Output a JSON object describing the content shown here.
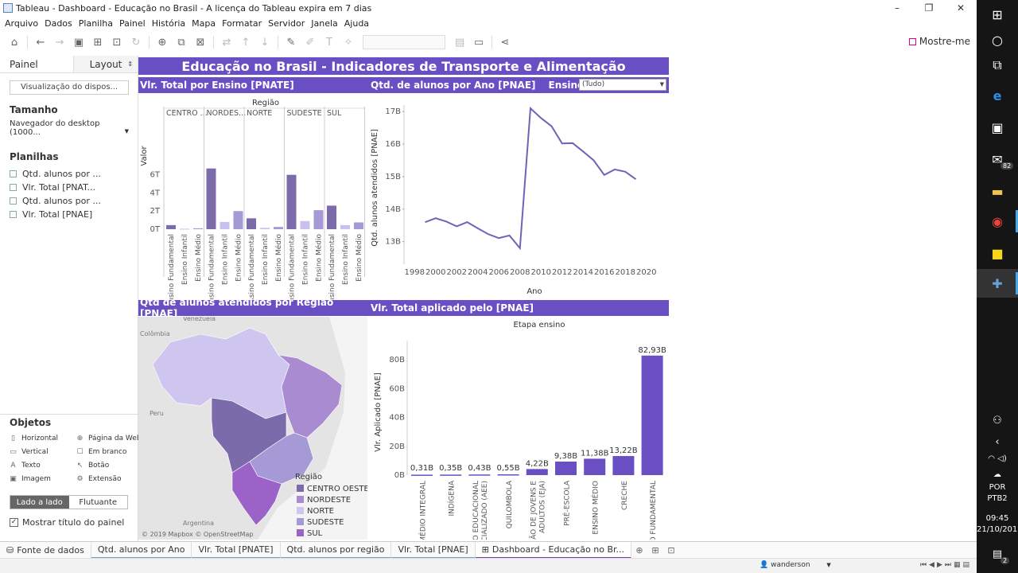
{
  "window": {
    "title": "Tableau - Dashboard - Educação no Brasil - A licença do Tableau expira em  7 dias",
    "controls": [
      "–",
      "❐",
      "✕"
    ]
  },
  "menu": [
    "Arquivo",
    "Dados",
    "Planilha",
    "Painel",
    "História",
    "Mapa",
    "Formatar",
    "Servidor",
    "Janela",
    "Ajuda"
  ],
  "toolbar": {
    "show_me": "Mostre-me"
  },
  "sidebar": {
    "tabs": [
      "Painel",
      "Layout"
    ],
    "device_preview": "Visualização do dispos...",
    "size_title": "Tamanho",
    "size_value": "Navegador do desktop (1000...",
    "sheets_title": "Planilhas",
    "sheets": [
      "Qtd. alunos por ...",
      "Vlr. Total [PNAT...",
      "Qtd. alunos por ...",
      "Vlr. Total [PNAE]"
    ],
    "objects_title": "Objetos",
    "objects": [
      {
        "label": "Horizontal",
        "icon": "horizontal-icon",
        "glyph": "▯"
      },
      {
        "label": "Página da Web",
        "icon": "web-page-icon",
        "glyph": "⊕"
      },
      {
        "label": "Vertical",
        "icon": "vertical-icon",
        "glyph": "▭"
      },
      {
        "label": "Em branco",
        "icon": "blank-icon",
        "glyph": "☐"
      },
      {
        "label": "Texto",
        "icon": "text-icon",
        "glyph": "A"
      },
      {
        "label": "Botão",
        "icon": "button-icon",
        "glyph": "↖"
      },
      {
        "label": "Imagem",
        "icon": "image-icon",
        "glyph": "▣"
      },
      {
        "label": "Extensão",
        "icon": "extension-icon",
        "glyph": "⚙"
      }
    ],
    "layout_toggle": [
      "Lado a lado",
      "Flutuante"
    ],
    "show_title_label": "Mostrar título do painel"
  },
  "dashboard": {
    "title": "Educação no Brasil - Indicadores de Transporte e Alimentação",
    "sheet1_title": "Vlr. Total por Ensino [PNATE]",
    "sheet2_title": "Qtd. de alunos por Ano [PNAE]",
    "filter_label": "Ensino:",
    "filter_value": "(Tudo)",
    "sheet3_title": "Qtd de alunos atendidos por Região [PNAE]",
    "sheet4_title": "Vlr. Total aplicado pelo [PNAE]",
    "map_credit": "© 2019 Mapbox © OpenStreetMap",
    "map_labels": [
      "Venezuela",
      "Colômbia",
      "Peru",
      "Argentina"
    ]
  },
  "colors": {
    "accent": "#6a4fc4",
    "centro_oeste": "#7c6bab",
    "nordeste": "#a88bd0",
    "norte": "#cfc6ef",
    "sudeste": "#a59ad6",
    "sul": "#9b62c8"
  },
  "chart_data": [
    {
      "type": "bar",
      "title": "Vlr. Total por Ensino [PNATE]",
      "group_header": "Região",
      "ylabel": "Valor",
      "yticks": [
        "0T",
        "2T",
        "4T",
        "6T"
      ],
      "ylim": [
        0,
        7.2
      ],
      "groups": [
        "CENTRO ...",
        "NORDES...",
        "NORTE",
        "SUDESTE",
        "SUL"
      ],
      "categories": [
        "Ensino Fundamental",
        "Ensino Infantil",
        "Ensino Médio"
      ],
      "values": [
        [
          0.45,
          0.05,
          0.1
        ],
        [
          6.7,
          0.8,
          2.0
        ],
        [
          1.2,
          0.15,
          0.25
        ],
        [
          6.0,
          0.9,
          2.1
        ],
        [
          2.6,
          0.45,
          0.75
        ]
      ]
    },
    {
      "type": "line",
      "title": "Qtd. de alunos por Ano [PNAE]",
      "xlabel": "Ano",
      "ylabel": "Qtd. alunos atendidos [PNAE]",
      "xticks": [
        "1998",
        "2000",
        "2002",
        "2004",
        "2006",
        "2008",
        "2010",
        "2012",
        "2014",
        "2016",
        "2018",
        "2020"
      ],
      "yticks": [
        "13B",
        "14B",
        "15B",
        "16B",
        "17B"
      ],
      "ylim": [
        12.6,
        17.2
      ],
      "x": [
        1999,
        2000,
        2001,
        2002,
        2003,
        2004,
        2005,
        2006,
        2007,
        2008,
        2009,
        2010,
        2011,
        2012,
        2013,
        2014,
        2015,
        2016,
        2017,
        2018,
        2019
      ],
      "y": [
        13.6,
        13.72,
        13.62,
        13.47,
        13.6,
        13.41,
        13.23,
        13.11,
        13.19,
        12.8,
        17.1,
        16.8,
        16.55,
        16.02,
        16.03,
        15.77,
        15.5,
        15.05,
        15.22,
        15.15,
        14.92
      ]
    },
    {
      "type": "bar",
      "title": "Vlr. Total aplicado pelo [PNAE]",
      "group_header": "Etapa ensino",
      "ylabel": "Vlr. Aplicado [PNAE]",
      "yticks": [
        "0B",
        "20B",
        "40B",
        "60B",
        "80B"
      ],
      "ylim": [
        0,
        90
      ],
      "categories": [
        "ENSINO MÉDIO INTEGRAL",
        "INDÍGENA",
        "ATENDIMENTO EDUCACIONAL ESPECIALIZADO (AEE)",
        "QUILOMBOLA",
        "EDUCAÇÃO DE JOVENS E ADULTOS (EJA)",
        "PRÉ-ESCOLA",
        "ENSINO MÉDIO",
        "CRECHE",
        "ENSINO FUNDAMENTAL"
      ],
      "values": [
        0.31,
        0.35,
        0.43,
        0.55,
        4.22,
        9.38,
        11.38,
        13.22,
        82.93
      ],
      "data_labels": [
        "0,31B",
        "0,35B",
        "0,43B",
        "0,55B",
        "4,22B",
        "9,38B",
        "11,38B",
        "13,22B",
        "82,93B"
      ]
    },
    {
      "type": "map",
      "title": "Qtd de alunos atendidos por Região [PNAE]",
      "legend_title": "Região",
      "legend": [
        "CENTRO OESTE",
        "NORDESTE",
        "NORTE",
        "SUDESTE",
        "SUL"
      ],
      "legend_placement": "bottom-right"
    }
  ],
  "bottom_tabs": [
    "Fonte de dados",
    "Qtd. alunos por Ano",
    "Vlr. Total [PNATE]",
    "Qtd. alunos por região",
    "Vlr. Total [PNAE]",
    "Dashboard - Educação no Br..."
  ],
  "status": {
    "user": "wanderson"
  },
  "taskbar": {
    "lang1": "POR",
    "lang2": "PTB2",
    "time": "09:45",
    "date": "21/10/2019",
    "mail_badge": "82",
    "notif_badge": "2"
  }
}
